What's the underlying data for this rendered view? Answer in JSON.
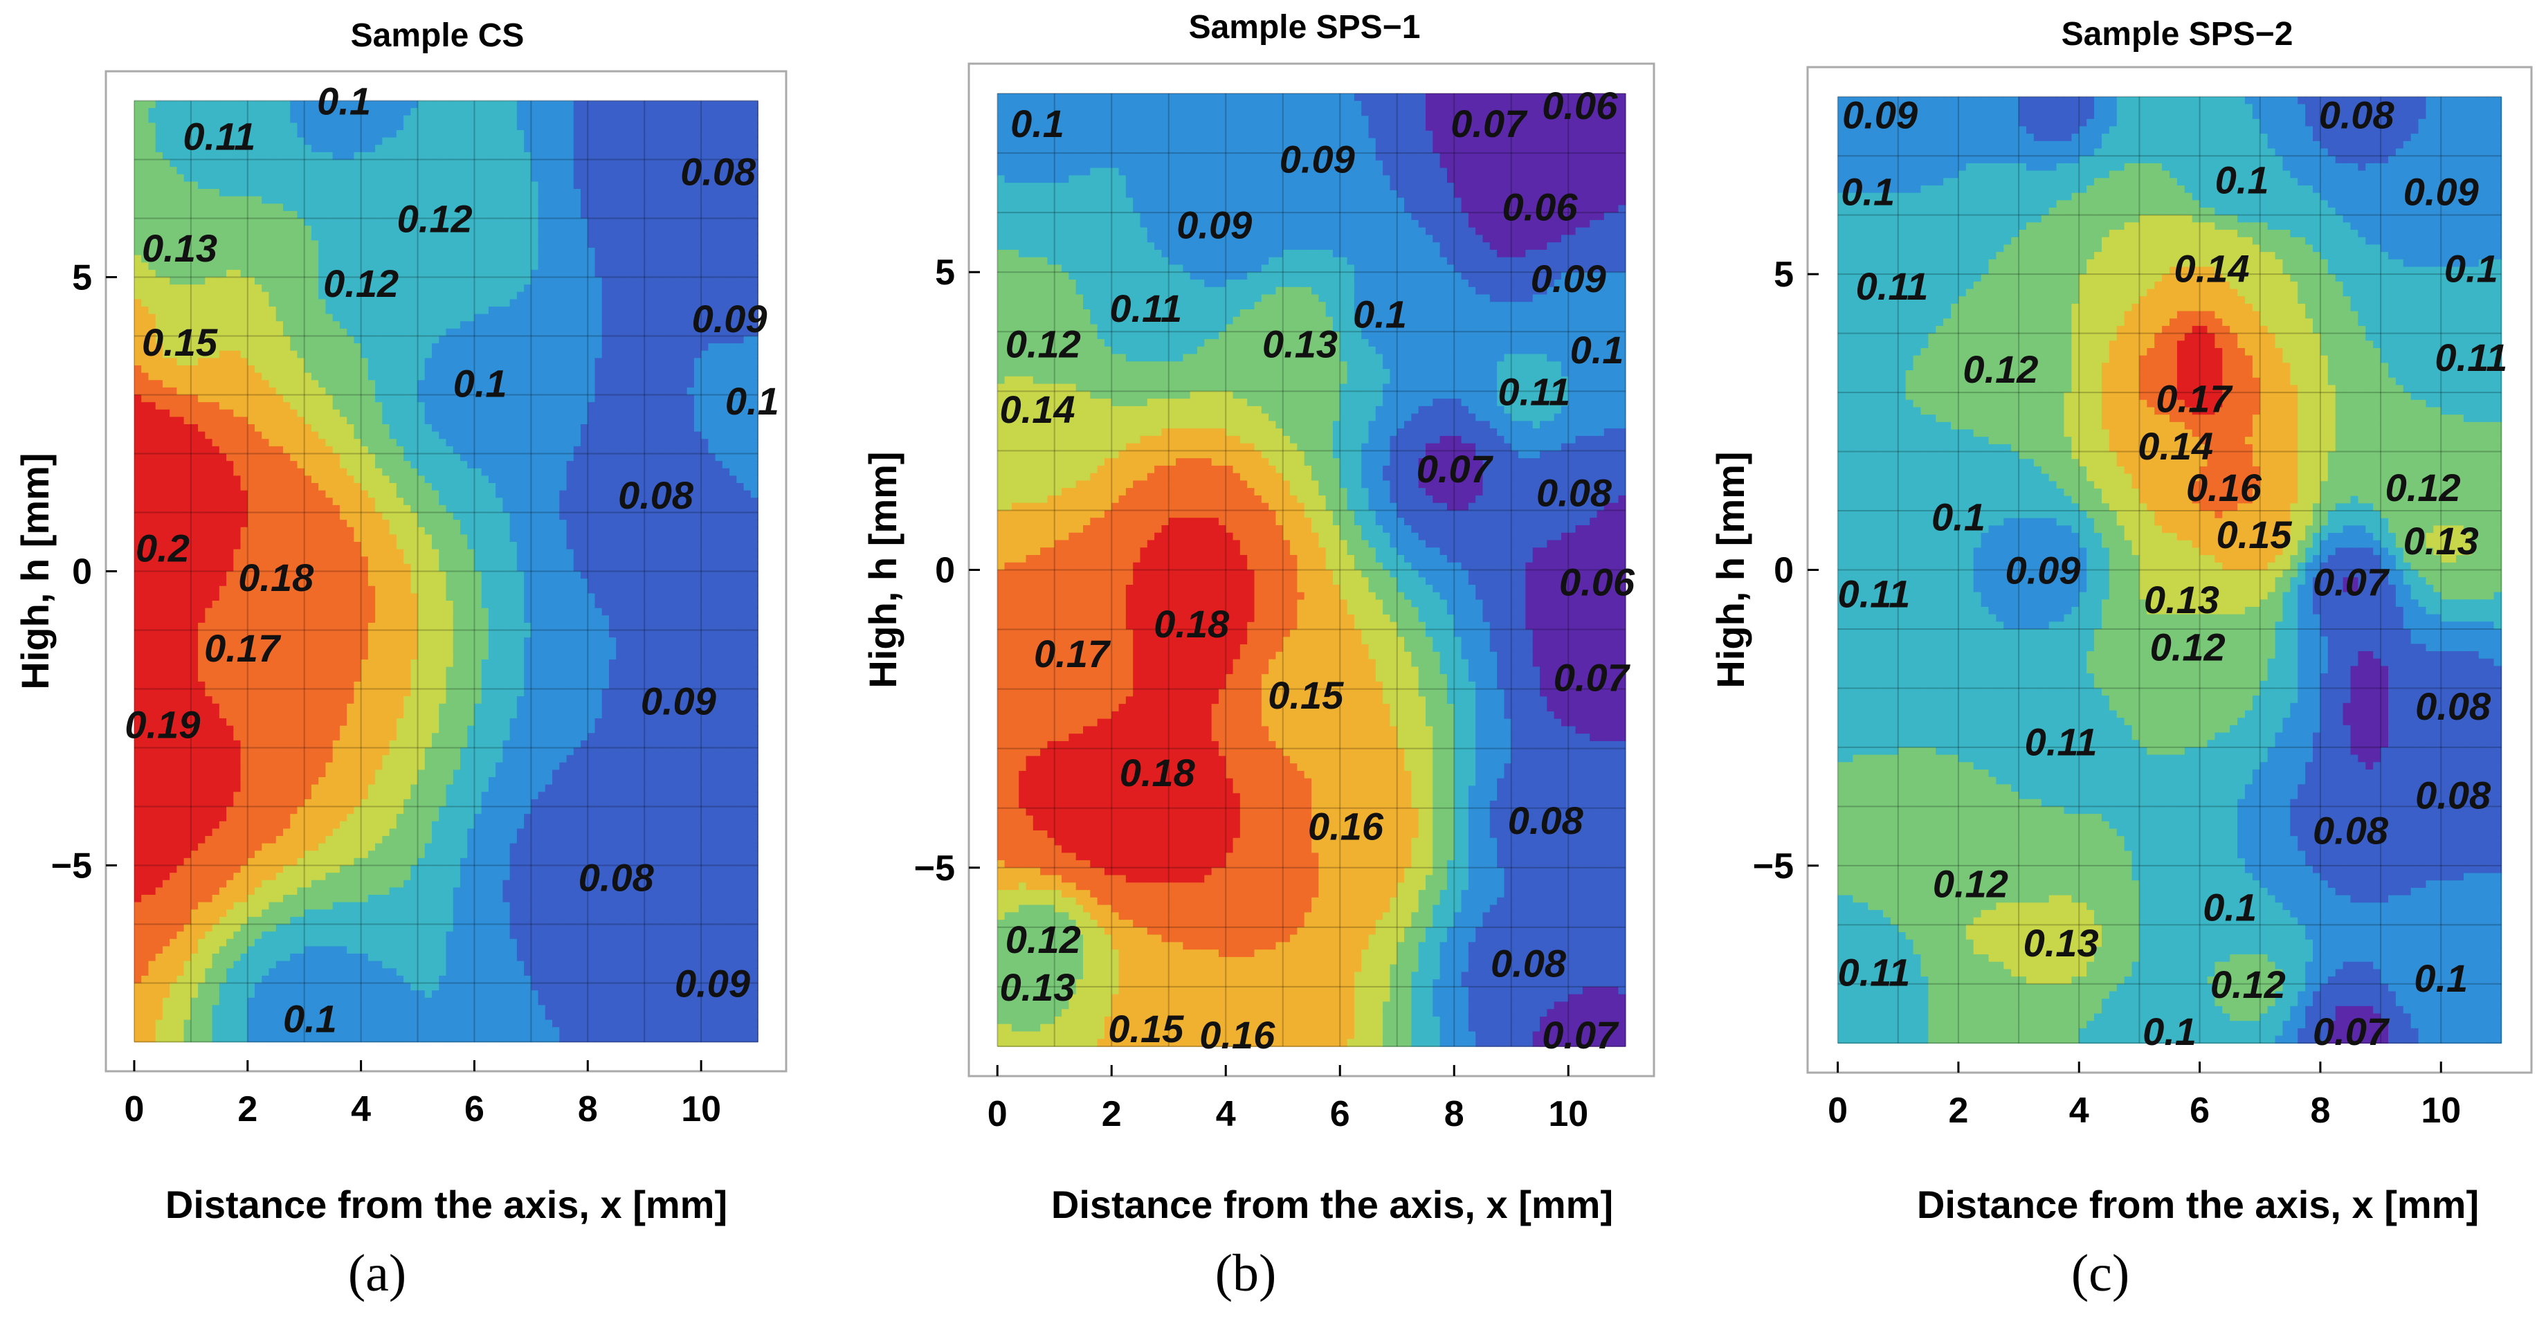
{
  "colors": {
    "scale": [
      "#5a28a8",
      "#3a5fc8",
      "#2f8fd8",
      "#3ab6c6",
      "#78c878",
      "#c8d64a",
      "#f0b030",
      "#f06a28",
      "#e01e20"
    ],
    "background": "#ffffff",
    "accent_cs_magenta": "#b4208a",
    "accent_sps1_darkblue": "#5a2ab0"
  },
  "chart_data": [
    {
      "type": "heatmap",
      "subtype": "contour",
      "panel_label": "(a)",
      "title": "Sample CS",
      "xlabel": "Distance from the axis,  x [mm]",
      "ylabel": "High,  h [mm]",
      "xlim": [
        -0.5,
        11.5
      ],
      "ylim": [
        -8.5,
        8.5
      ],
      "data_extent": {
        "x": [
          0,
          11
        ],
        "y": [
          -8,
          8
        ]
      },
      "x_ticks": [
        "0",
        "2",
        "4",
        "6",
        "8",
        "10"
      ],
      "y_ticks": [
        "5",
        "0",
        "−5"
      ],
      "value_range": [
        0.06,
        0.2
      ],
      "grid": true,
      "hotspots": [
        {
          "x": 0.1,
          "y": 0.3,
          "value": 0.2,
          "sx": 1.4,
          "sy": 3.5
        },
        {
          "x": 9.3,
          "y": 7.0,
          "value": 0.08,
          "sx": 1.0,
          "sy": 1.3
        },
        {
          "x": 9.1,
          "y": 3.0,
          "value": 0.08,
          "sx": 0.6,
          "sy": 1.6
        },
        {
          "x": 9.3,
          "y": -5.8,
          "value": 0.08,
          "sx": 0.8,
          "sy": 1.2
        }
      ],
      "contour_labels": [
        {
          "x": 3.7,
          "y": 8.0,
          "text": "0.1"
        },
        {
          "x": 1.5,
          "y": 7.4,
          "text": "0.11"
        },
        {
          "x": 10.3,
          "y": 6.8,
          "text": "0.08"
        },
        {
          "x": 5.3,
          "y": 6.0,
          "text": "0.12"
        },
        {
          "x": 0.8,
          "y": 5.5,
          "text": "0.13"
        },
        {
          "x": 4.0,
          "y": 4.9,
          "text": "0.12"
        },
        {
          "x": 10.5,
          "y": 4.3,
          "text": "0.09"
        },
        {
          "x": 0.8,
          "y": 3.9,
          "text": "0.15"
        },
        {
          "x": 6.1,
          "y": 3.2,
          "text": "0.1"
        },
        {
          "x": 10.9,
          "y": 2.9,
          "text": "0.1"
        },
        {
          "x": 9.2,
          "y": 1.3,
          "text": "0.08"
        },
        {
          "x": 0.5,
          "y": 0.4,
          "text": "0.2"
        },
        {
          "x": 2.5,
          "y": -0.1,
          "text": "0.18"
        },
        {
          "x": 1.9,
          "y": -1.3,
          "text": "0.17"
        },
        {
          "x": 9.6,
          "y": -2.2,
          "text": "0.09"
        },
        {
          "x": 0.5,
          "y": -2.6,
          "text": "0.19"
        },
        {
          "x": 8.5,
          "y": -5.2,
          "text": "0.08"
        },
        {
          "x": 10.2,
          "y": -7.0,
          "text": "0.09"
        },
        {
          "x": 3.1,
          "y": -7.6,
          "text": "0.1"
        }
      ]
    },
    {
      "type": "heatmap",
      "subtype": "contour",
      "panel_label": "(b)",
      "title": "Sample SPS−1",
      "xlabel": "Distance from the axis,  x [mm]",
      "ylabel": "High,  h [mm]",
      "xlim": [
        -0.5,
        11.5
      ],
      "ylim": [
        -8.5,
        8.5
      ],
      "data_extent": {
        "x": [
          0,
          11
        ],
        "y": [
          -8,
          8
        ]
      },
      "x_ticks": [
        "0",
        "2",
        "4",
        "6",
        "8",
        "10"
      ],
      "y_ticks": [
        "5",
        "0",
        "−5"
      ],
      "value_range": [
        0.06,
        0.19
      ],
      "grid": true,
      "hotspots": [
        {
          "x": 3.5,
          "y": -0.6,
          "value": 0.18,
          "sx": 1.4,
          "sy": 2.2
        },
        {
          "x": 2.3,
          "y": -4.2,
          "value": 0.18,
          "sx": 2.6,
          "sy": 1.8
        },
        {
          "x": 10.5,
          "y": 7.8,
          "value": 0.06,
          "sx": 1.0,
          "sy": 0.8
        },
        {
          "x": 10.7,
          "y": -0.2,
          "value": 0.06,
          "sx": 0.6,
          "sy": 1.5
        },
        {
          "x": 9.2,
          "y": 6.2,
          "value": 0.06,
          "sx": 0.5,
          "sy": 0.9
        }
      ],
      "contour_labels": [
        {
          "x": 0.7,
          "y": 7.5,
          "text": "0.1"
        },
        {
          "x": 8.6,
          "y": 7.5,
          "text": "0.07"
        },
        {
          "x": 10.2,
          "y": 7.8,
          "text": "0.06"
        },
        {
          "x": 5.6,
          "y": 6.9,
          "text": "0.09"
        },
        {
          "x": 3.8,
          "y": 5.8,
          "text": "0.09"
        },
        {
          "x": 9.5,
          "y": 6.1,
          "text": "0.06"
        },
        {
          "x": 10.0,
          "y": 4.9,
          "text": "0.09"
        },
        {
          "x": 2.6,
          "y": 4.4,
          "text": "0.11"
        },
        {
          "x": 6.7,
          "y": 4.3,
          "text": "0.1"
        },
        {
          "x": 0.8,
          "y": 3.8,
          "text": "0.12"
        },
        {
          "x": 5.3,
          "y": 3.8,
          "text": "0.13"
        },
        {
          "x": 10.5,
          "y": 3.7,
          "text": "0.1"
        },
        {
          "x": 9.4,
          "y": 3.0,
          "text": "0.11"
        },
        {
          "x": 0.7,
          "y": 2.7,
          "text": "0.14"
        },
        {
          "x": 8.0,
          "y": 1.7,
          "text": "0.07"
        },
        {
          "x": 10.1,
          "y": 1.3,
          "text": "0.08"
        },
        {
          "x": 10.5,
          "y": -0.2,
          "text": "0.06"
        },
        {
          "x": 3.4,
          "y": -0.9,
          "text": "0.18"
        },
        {
          "x": 1.3,
          "y": -1.4,
          "text": "0.17"
        },
        {
          "x": 10.4,
          "y": -1.8,
          "text": "0.07"
        },
        {
          "x": 5.4,
          "y": -2.1,
          "text": "0.15"
        },
        {
          "x": 2.8,
          "y": -3.4,
          "text": "0.18"
        },
        {
          "x": 6.1,
          "y": -4.3,
          "text": "0.16"
        },
        {
          "x": 9.6,
          "y": -4.2,
          "text": "0.08"
        },
        {
          "x": 0.8,
          "y": -6.2,
          "text": "0.12"
        },
        {
          "x": 0.7,
          "y": -7.0,
          "text": "0.13"
        },
        {
          "x": 9.3,
          "y": -6.6,
          "text": "0.08"
        },
        {
          "x": 2.6,
          "y": -7.7,
          "text": "0.15"
        },
        {
          "x": 4.2,
          "y": -7.8,
          "text": "0.16"
        },
        {
          "x": 10.2,
          "y": -7.8,
          "text": "0.07"
        }
      ]
    },
    {
      "type": "heatmap",
      "subtype": "contour",
      "panel_label": "(c)",
      "title": "Sample SPS−2",
      "xlabel": "Distance from the axis,  x [mm]",
      "ylabel": "High,  h [mm]",
      "xlim": [
        -0.5,
        11.5
      ],
      "ylim": [
        -8.5,
        8.5
      ],
      "data_extent": {
        "x": [
          0,
          11
        ],
        "y": [
          -8,
          8
        ]
      },
      "x_ticks": [
        "0",
        "2",
        "4",
        "6",
        "8",
        "10"
      ],
      "y_ticks": [
        "5",
        "0",
        "−5"
      ],
      "value_range": [
        0.06,
        0.18
      ],
      "grid": true,
      "hotspots": [
        {
          "x": 6.0,
          "y": 3.3,
          "value": 0.18,
          "sx": 0.5,
          "sy": 1.4
        },
        {
          "x": 8.8,
          "y": -2.3,
          "value": 0.07,
          "sx": 0.7,
          "sy": 2.0
        },
        {
          "x": 8.8,
          "y": -7.8,
          "value": 0.07,
          "sx": 0.5,
          "sy": 0.6
        },
        {
          "x": 2.6,
          "y": -6.0,
          "value": 0.13,
          "sx": 0.9,
          "sy": 0.8
        },
        {
          "x": 3.6,
          "y": 7.8,
          "value": 0.08,
          "sx": 0.6,
          "sy": 0.6
        }
      ],
      "contour_labels": [
        {
          "x": 0.7,
          "y": 7.7,
          "text": "0.09"
        },
        {
          "x": 8.6,
          "y": 7.7,
          "text": "0.08"
        },
        {
          "x": 0.5,
          "y": 6.4,
          "text": "0.1"
        },
        {
          "x": 6.7,
          "y": 6.6,
          "text": "0.1"
        },
        {
          "x": 10.0,
          "y": 6.4,
          "text": "0.09"
        },
        {
          "x": 6.2,
          "y": 5.1,
          "text": "0.14"
        },
        {
          "x": 0.9,
          "y": 4.8,
          "text": "0.11"
        },
        {
          "x": 10.5,
          "y": 5.1,
          "text": "0.1"
        },
        {
          "x": 2.7,
          "y": 3.4,
          "text": "0.12"
        },
        {
          "x": 10.5,
          "y": 3.6,
          "text": "0.11"
        },
        {
          "x": 5.9,
          "y": 2.9,
          "text": "0.17"
        },
        {
          "x": 5.6,
          "y": 2.1,
          "text": "0.14"
        },
        {
          "x": 6.4,
          "y": 1.4,
          "text": "0.16"
        },
        {
          "x": 9.7,
          "y": 1.4,
          "text": "0.12"
        },
        {
          "x": 2.0,
          "y": 0.9,
          "text": "0.1"
        },
        {
          "x": 6.9,
          "y": 0.6,
          "text": "0.15"
        },
        {
          "x": 10.0,
          "y": 0.5,
          "text": "0.13"
        },
        {
          "x": 3.4,
          "y": 0.0,
          "text": "0.09"
        },
        {
          "x": 8.5,
          "y": -0.2,
          "text": "0.07"
        },
        {
          "x": 0.6,
          "y": -0.4,
          "text": "0.11"
        },
        {
          "x": 5.7,
          "y": -0.5,
          "text": "0.13"
        },
        {
          "x": 5.8,
          "y": -1.3,
          "text": "0.12"
        },
        {
          "x": 10.2,
          "y": -2.3,
          "text": "0.08"
        },
        {
          "x": 3.7,
          "y": -2.9,
          "text": "0.11"
        },
        {
          "x": 10.2,
          "y": -3.8,
          "text": "0.08"
        },
        {
          "x": 8.5,
          "y": -4.4,
          "text": "0.08"
        },
        {
          "x": 2.2,
          "y": -5.3,
          "text": "0.12"
        },
        {
          "x": 6.5,
          "y": -5.7,
          "text": "0.1"
        },
        {
          "x": 3.7,
          "y": -6.3,
          "text": "0.13"
        },
        {
          "x": 0.6,
          "y": -6.8,
          "text": "0.11"
        },
        {
          "x": 10.0,
          "y": -6.9,
          "text": "0.1"
        },
        {
          "x": 6.8,
          "y": -7.0,
          "text": "0.12"
        },
        {
          "x": 5.5,
          "y": -7.8,
          "text": "0.1"
        },
        {
          "x": 8.5,
          "y": -7.8,
          "text": "0.07"
        }
      ]
    }
  ]
}
